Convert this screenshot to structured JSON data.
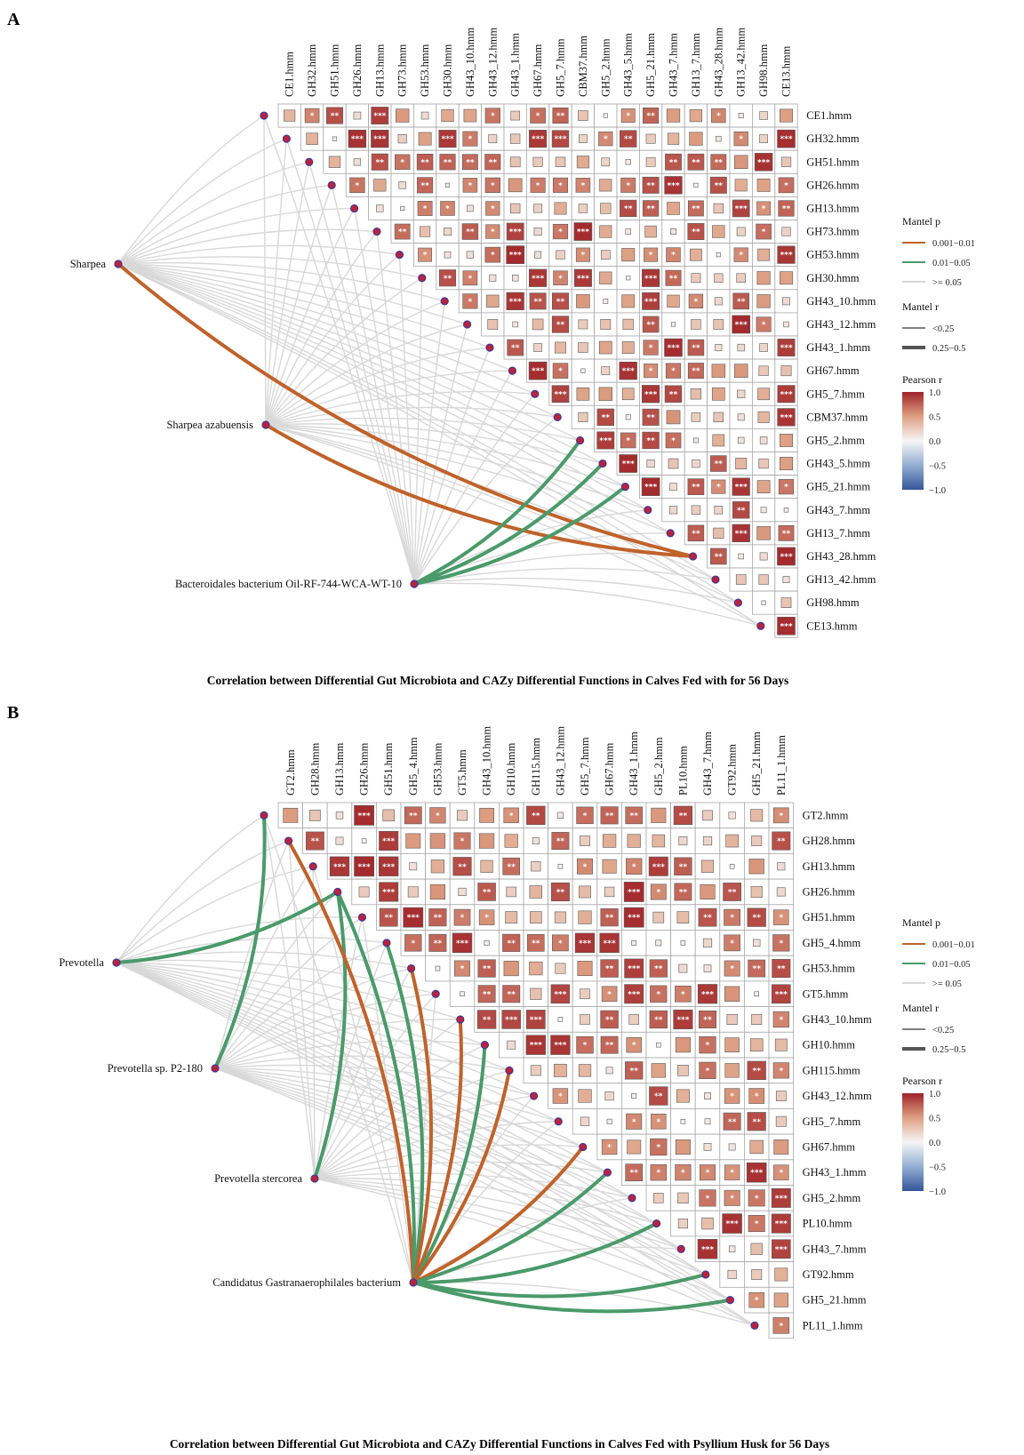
{
  "chart_data": [
    {
      "panel": "A",
      "type": "heatmap",
      "subtype": "mantel-correlation-network",
      "title": "Correlation between Differential Gut Microbiota and CAZy Differential Functions in Calves Fed with  for 56 Days",
      "functions": [
        "CE1.hmm",
        "GH32.hmm",
        "GH51.hmm",
        "GH26.hmm",
        "GH13.hmm",
        "GH73.hmm",
        "GH53.hmm",
        "GH30.hmm",
        "GH43_10.hmm",
        "GH43_12.hmm",
        "GH43_1.hmm",
        "GH67.hmm",
        "GH5_7.hmm",
        "CBM37.hmm",
        "GH5_2.hmm",
        "GH43_5.hmm",
        "GH5_21.hmm",
        "GH43_7.hmm",
        "GH13_7.hmm",
        "GH43_28.hmm",
        "GH13_42.hmm",
        "GH98.hmm",
        "CE13.hmm"
      ],
      "taxa": [
        "Sharpea",
        "Sharpea azabuensis",
        "Bacteroidales bacterium Oil-RF-744-WCA-WT-10"
      ],
      "mantel_links": [
        {
          "taxon": "Sharpea",
          "function": "GH43_28.hmm",
          "p": "0.001-0.01",
          "r": "0.25-0.5"
        },
        {
          "taxon": "Sharpea azabuensis",
          "function": "GH43_28.hmm",
          "p": "0.001-0.01",
          "r": "0.25-0.5"
        },
        {
          "taxon": "Bacteroidales bacterium Oil-RF-744-WCA-WT-10",
          "function": "GH5_2.hmm",
          "p": "0.01-0.05",
          "r": "0.25-0.5"
        },
        {
          "taxon": "Bacteroidales bacterium Oil-RF-744-WCA-WT-10",
          "function": "GH43_5.hmm",
          "p": "0.01-0.05",
          "r": "0.25-0.5"
        },
        {
          "taxon": "Bacteroidales bacterium Oil-RF-744-WCA-WT-10",
          "function": "GH5_21.hmm",
          "p": "0.01-0.05",
          "r": "0.25-0.5"
        }
      ],
      "legend": {
        "mantel_p_title": "Mantel p",
        "mantel_p_items": [
          {
            "label": "0.001−0.01",
            "color": "#c0622a"
          },
          {
            "label": "0.01−0.05",
            "color": "#4a9a6a"
          },
          {
            "label": ">= 0.05",
            "color": "#d6d6d6"
          }
        ],
        "mantel_r_title": "Mantel r",
        "mantel_r_items": [
          "<0.25",
          "0.25−0.5"
        ],
        "pearson_title": "Pearson r",
        "pearson_ticks": [
          "1.0",
          "0.5",
          "0.0",
          "−0.5",
          "−1.0"
        ],
        "pearson_range": [
          -1,
          1
        ]
      }
    },
    {
      "panel": "B",
      "type": "heatmap",
      "subtype": "mantel-correlation-network",
      "title": "Correlation between Differential Gut Microbiota and CAZy Differential Functions in Calves Fed with Psyllium Husk for 56 Days",
      "functions": [
        "GT2.hmm",
        "GH28.hmm",
        "GH13.hmm",
        "GH26.hmm",
        "GH51.hmm",
        "GH5_4.hmm",
        "GH53.hmm",
        "GT5.hmm",
        "GH43_10.hmm",
        "GH10.hmm",
        "GH115.hmm",
        "GH43_12.hmm",
        "GH5_7.hmm",
        "GH67.hmm",
        "GH43_1.hmm",
        "GH5_2.hmm",
        "PL10.hmm",
        "GH43_7.hmm",
        "GT92.hmm",
        "GH5_21.hmm",
        "PL11_1.hmm"
      ],
      "taxa": [
        "Prevotella",
        "Prevotella sp. P2-180",
        "Prevotella stercorea",
        "Candidatus Gastranaerophilales bacterium"
      ],
      "mantel_links": [
        {
          "taxon": "Prevotella",
          "function": "GH26.hmm",
          "p": "0.01-0.05",
          "r": "0.25-0.5"
        },
        {
          "taxon": "Prevotella sp. P2-180",
          "function": "GT2.hmm",
          "p": "0.01-0.05",
          "r": "0.25-0.5"
        },
        {
          "taxon": "Prevotella stercorea",
          "function": "GH26.hmm",
          "p": "0.01-0.05",
          "r": "0.25-0.5"
        },
        {
          "taxon": "Candidatus Gastranaerophilales bacterium",
          "function": "GH28.hmm",
          "p": "0.001-0.01",
          "r": "0.25-0.5"
        },
        {
          "taxon": "Candidatus Gastranaerophilales bacterium",
          "function": "GH26.hmm",
          "p": "0.01-0.05",
          "r": "0.25-0.5"
        },
        {
          "taxon": "Candidatus Gastranaerophilales bacterium",
          "function": "GH5_4.hmm",
          "p": "0.01-0.05",
          "r": "0.25-0.5"
        },
        {
          "taxon": "Candidatus Gastranaerophilales bacterium",
          "function": "GH53.hmm",
          "p": "0.001-0.01",
          "r": "0.25-0.5"
        },
        {
          "taxon": "Candidatus Gastranaerophilales bacterium",
          "function": "GH43_10.hmm",
          "p": "0.001-0.01",
          "r": "0.25-0.5"
        },
        {
          "taxon": "Candidatus Gastranaerophilales bacterium",
          "function": "GH10.hmm",
          "p": "0.01-0.05",
          "r": "0.25-0.5"
        },
        {
          "taxon": "Candidatus Gastranaerophilales bacterium",
          "function": "GH115.hmm",
          "p": "0.001-0.01",
          "r": "0.25-0.5"
        },
        {
          "taxon": "Candidatus Gastranaerophilales bacterium",
          "function": "GH67.hmm",
          "p": "0.001-0.01",
          "r": "0.25-0.5"
        },
        {
          "taxon": "Candidatus Gastranaerophilales bacterium",
          "function": "GH43_1.hmm",
          "p": "0.01-0.05",
          "r": "0.25-0.5"
        },
        {
          "taxon": "Candidatus Gastranaerophilales bacterium",
          "function": "PL10.hmm",
          "p": "0.01-0.05",
          "r": "0.25-0.5"
        },
        {
          "taxon": "Candidatus Gastranaerophilales bacterium",
          "function": "GT92.hmm",
          "p": "0.01-0.05",
          "r": "0.25-0.5"
        },
        {
          "taxon": "Candidatus Gastranaerophilales bacterium",
          "function": "GH5_21.hmm",
          "p": "0.01-0.05",
          "r": "0.25-0.5"
        }
      ],
      "legend": {
        "mantel_p_title": "Mantel p",
        "mantel_p_items": [
          {
            "label": "0.001−0.01",
            "color": "#c0622a"
          },
          {
            "label": "0.01−0.05",
            "color": "#4a9a6a"
          },
          {
            "label": ">= 0.05",
            "color": "#d6d6d6"
          }
        ],
        "mantel_r_title": "Mantel r",
        "mantel_r_items": [
          "<0.25",
          "0.25−0.5"
        ],
        "pearson_title": "Pearson r",
        "pearson_ticks": [
          "1.0",
          "0.5",
          "0.0",
          "−0.5",
          "−1.0"
        ],
        "pearson_range": [
          -1,
          1
        ]
      }
    }
  ]
}
